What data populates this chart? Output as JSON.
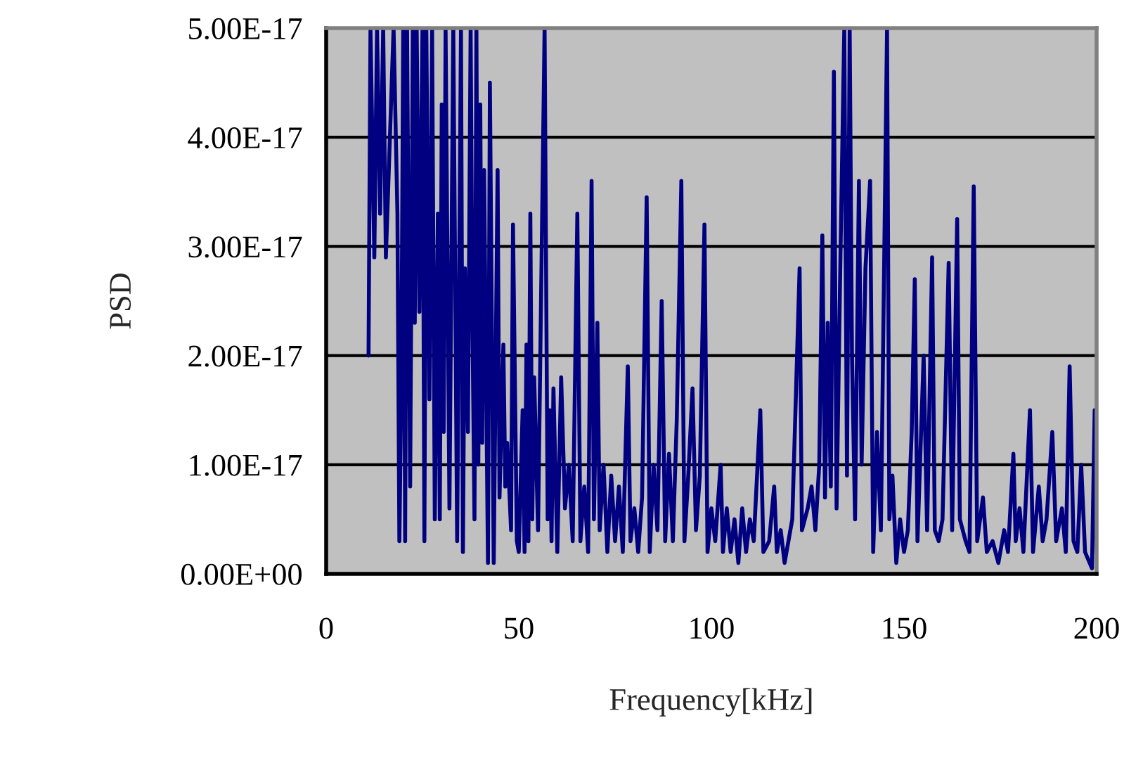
{
  "chart_data": {
    "type": "line",
    "xlabel": "Frequency[kHz]",
    "ylabel": "PSD",
    "xlim": [
      0,
      200
    ],
    "xticks": [
      0,
      50,
      100,
      150,
      200
    ],
    "ylim": [
      0,
      5e-17
    ],
    "yticks": [
      {
        "value": 0,
        "label": "0.00E+00"
      },
      {
        "value": 1e-17,
        "label": "1.00E-17"
      },
      {
        "value": 2e-17,
        "label": "2.00E-17"
      },
      {
        "value": 3e-17,
        "label": "3.00E-17"
      },
      {
        "value": 4e-17,
        "label": "4.00E-17"
      },
      {
        "value": 5e-17,
        "label": "5.00E-17"
      }
    ],
    "grid": "y",
    "marker": "none",
    "line_style": "solid",
    "series": [
      {
        "color": "#000080",
        "x": [
          11,
          11.5,
          12.5,
          13.2,
          14,
          14.8,
          15.5,
          17.5,
          18.5,
          19,
          19.5,
          20,
          20.5,
          21,
          21.8,
          22.5,
          23,
          23.5,
          24.2,
          25,
          25.5,
          26,
          26.8,
          27.5,
          28.2,
          29,
          29.5,
          30,
          30.5,
          31,
          32,
          33,
          34,
          35,
          35.5,
          36,
          36.8,
          37.5,
          38,
          38.5,
          39,
          39.5,
          40,
          40.5,
          41,
          42,
          42.5,
          43.5,
          44.5,
          45,
          46,
          46.5,
          47,
          48,
          48.5,
          49.5,
          50,
          51,
          51.5,
          52,
          52.5,
          53,
          53.5,
          54,
          55,
          56.7,
          57.5,
          58,
          58.5,
          59,
          60,
          61,
          62,
          63,
          64,
          65.2,
          66,
          67,
          68,
          68.9,
          69.5,
          70.4,
          71,
          72,
          73,
          74,
          75,
          76,
          77,
          78.3,
          79,
          80,
          81,
          82,
          83.2,
          84,
          85,
          86,
          87.1,
          88,
          89,
          90,
          91,
          92.2,
          93,
          94,
          95.1,
          96,
          97,
          98.2,
          99,
          100,
          101,
          102.4,
          103,
          104,
          105,
          106,
          107,
          108,
          109,
          110,
          111,
          112.7,
          113.5,
          115,
          116.3,
          117,
          118,
          119,
          120,
          121,
          122.9,
          123.5,
          125,
          126,
          127,
          128,
          128.8,
          129.5,
          130.2,
          131,
          131.8,
          132.5,
          133.5,
          134.5,
          135.2,
          135.9,
          136.5,
          137.3,
          138.3,
          139,
          140,
          141.2,
          142,
          143,
          144,
          145.6,
          146.2,
          147,
          148,
          149,
          150,
          151,
          152,
          152.8,
          153.5,
          155.1,
          156,
          157.3,
          158,
          159,
          160,
          161.6,
          162.5,
          163.8,
          164.5,
          166,
          167,
          168.1,
          169,
          170.5,
          171.5,
          173,
          174.5,
          176,
          177,
          178.4,
          179,
          180,
          181,
          182.7,
          183.5,
          185,
          186,
          187,
          188.5,
          189.5,
          191,
          192,
          193,
          194,
          195,
          196,
          197,
          198.8,
          199.5,
          200
        ],
        "values": [
          2e-17,
          5e-17,
          2.9e-17,
          5e-17,
          3.3e-17,
          5e-17,
          2.9e-17,
          5e-17,
          3.3e-17,
          3e-18,
          1.7e-17,
          5e-17,
          3e-18,
          5e-17,
          8e-18,
          5e-17,
          2.3e-17,
          5e-17,
          2.4e-17,
          5e-17,
          3e-18,
          5e-17,
          1.6e-17,
          5e-17,
          5e-18,
          3.3e-17,
          5e-18,
          4.3e-17,
          1.3e-17,
          5e-17,
          6e-18,
          5e-17,
          3e-18,
          5e-17,
          2e-18,
          2.8e-17,
          1.3e-17,
          5e-17,
          2.2e-17,
          5e-18,
          5e-17,
          1e-17,
          4.3e-17,
          1.2e-17,
          3.7e-17,
          1e-18,
          4.5e-17,
          1e-18,
          3.7e-17,
          7e-18,
          2.1e-17,
          8e-18,
          1.2e-17,
          4e-18,
          3.2e-17,
          3e-18,
          2e-18,
          1.5e-17,
          2e-18,
          2.1e-17,
          3e-18,
          3.3e-17,
          5e-18,
          1.8e-17,
          4e-18,
          5e-17,
          5e-18,
          1.5e-17,
          3e-18,
          1.7e-17,
          2e-18,
          1.8e-17,
          6e-18,
          1e-17,
          3e-18,
          3.3e-17,
          3e-18,
          8e-18,
          2e-18,
          3.6e-17,
          5e-18,
          2.3e-17,
          4e-18,
          1e-17,
          2e-18,
          9e-18,
          3e-18,
          8e-18,
          2e-18,
          1.9e-17,
          3e-18,
          6e-18,
          2e-18,
          7e-18,
          3.45e-17,
          2e-18,
          1e-17,
          4e-18,
          2.5e-17,
          3e-18,
          1.1e-17,
          3e-18,
          1.4e-17,
          3.6e-17,
          3e-18,
          9e-18,
          1.7e-17,
          4e-18,
          9e-18,
          3.2e-17,
          2e-18,
          6e-18,
          3e-18,
          1e-17,
          2e-18,
          6e-18,
          2e-18,
          5e-18,
          1e-18,
          6e-18,
          2e-18,
          5e-18,
          3e-18,
          1.5e-17,
          2e-18,
          3e-18,
          8e-18,
          2e-18,
          4e-18,
          1e-18,
          3e-18,
          5e-18,
          2.8e-17,
          4e-18,
          6e-18,
          8e-18,
          4e-18,
          1e-17,
          3.1e-17,
          7e-18,
          2.3e-17,
          8e-18,
          4.6e-17,
          6e-18,
          2.9e-17,
          5e-17,
          9e-18,
          5e-17,
          2e-17,
          5e-18,
          3.6e-17,
          1e-17,
          2.8e-17,
          3.6e-17,
          2e-18,
          1.3e-17,
          4e-18,
          5e-17,
          5e-18,
          9e-18,
          1e-18,
          5e-18,
          2e-18,
          4e-18,
          1.3e-17,
          2.7e-17,
          3e-18,
          2e-17,
          4e-18,
          2.9e-17,
          4e-18,
          3e-18,
          5e-18,
          2.85e-17,
          4e-18,
          3.25e-17,
          5e-18,
          3e-18,
          2e-18,
          3.55e-17,
          3e-18,
          7e-18,
          2e-18,
          3e-18,
          1e-18,
          4e-18,
          2e-18,
          1.1e-17,
          3e-18,
          6e-18,
          2e-18,
          1.5e-17,
          2e-18,
          8e-18,
          3e-18,
          5e-18,
          1.3e-17,
          3e-18,
          6e-18,
          2e-18,
          1.9e-17,
          3e-18,
          2e-18,
          1e-17,
          2e-18,
          5e-19,
          1.5e-17,
          2e-18
        ]
      }
    ]
  }
}
